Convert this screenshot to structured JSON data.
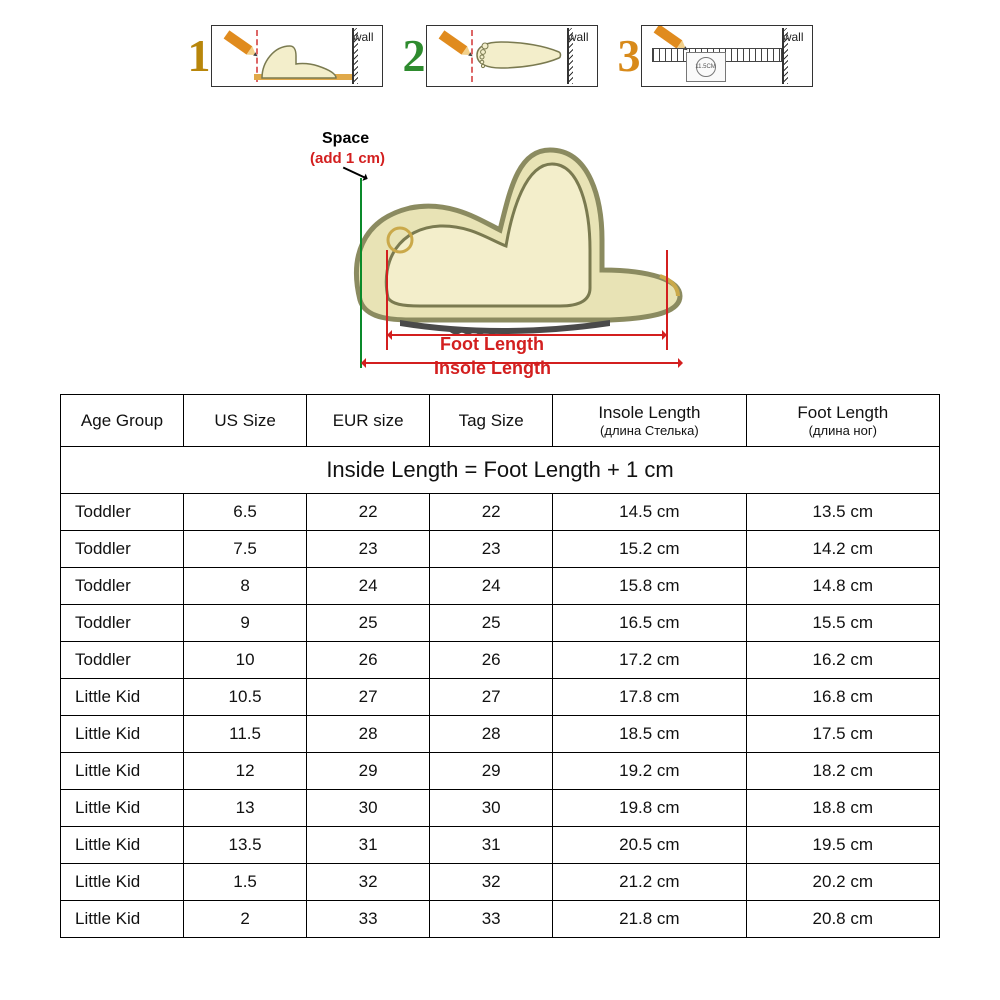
{
  "steps": {
    "numbers": [
      "1",
      "2",
      "3"
    ],
    "num_colors": [
      "#b8860b",
      "#2e8b2e",
      "#d88a1a"
    ],
    "wall_label": "wall",
    "circle_label": "11.5CM"
  },
  "diagram": {
    "space_label": "Space",
    "space_sub": "(add 1 cm)",
    "foot_length_label": "Foot Length",
    "insole_length_label": "Insole Length",
    "colors": {
      "red": "#d31f1f",
      "green": "#0a8a2a",
      "foot_fill": "#f3eecb",
      "shoe_line": "#8b8b60",
      "shoe_fill": "#e8e3b5",
      "sole": "#4a4a4a"
    }
  },
  "table": {
    "title": "Inside Length = Foot Length + 1 cm",
    "columns": [
      {
        "label": "Age Group",
        "sub": ""
      },
      {
        "label": "US Size",
        "sub": ""
      },
      {
        "label": "EUR size",
        "sub": ""
      },
      {
        "label": "Tag Size",
        "sub": ""
      },
      {
        "label": "Insole Length",
        "sub": "(длина Стелька)"
      },
      {
        "label": "Foot Length",
        "sub": "(длина ног)"
      }
    ],
    "col_widths": [
      "14%",
      "14%",
      "14%",
      "14%",
      "22%",
      "22%"
    ],
    "rows": [
      [
        "Toddler",
        "6.5",
        "22",
        "22",
        "14.5 cm",
        "13.5 cm"
      ],
      [
        "Toddler",
        "7.5",
        "23",
        "23",
        "15.2 cm",
        "14.2 cm"
      ],
      [
        "Toddler",
        "8",
        "24",
        "24",
        "15.8 cm",
        "14.8 cm"
      ],
      [
        "Toddler",
        "9",
        "25",
        "25",
        "16.5 cm",
        "15.5 cm"
      ],
      [
        "Toddler",
        "10",
        "26",
        "26",
        "17.2 cm",
        "16.2 cm"
      ],
      [
        "Little Kid",
        "10.5",
        "27",
        "27",
        "17.8 cm",
        "16.8 cm"
      ],
      [
        "Little Kid",
        "11.5",
        "28",
        "28",
        "18.5 cm",
        "17.5 cm"
      ],
      [
        "Little Kid",
        "12",
        "29",
        "29",
        "19.2 cm",
        "18.2 cm"
      ],
      [
        "Little Kid",
        "13",
        "30",
        "30",
        "19.8 cm",
        "18.8 cm"
      ],
      [
        "Little Kid",
        "13.5",
        "31",
        "31",
        "20.5 cm",
        "19.5 cm"
      ],
      [
        "Little Kid",
        "1.5",
        "32",
        "32",
        "21.2 cm",
        "20.2 cm"
      ],
      [
        "Little Kid",
        "2",
        "33",
        "33",
        "21.8 cm",
        "20.8 cm"
      ]
    ]
  }
}
